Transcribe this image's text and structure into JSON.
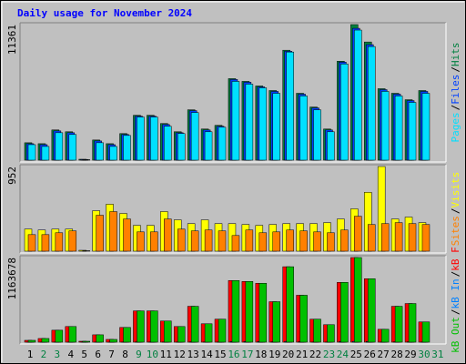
{
  "chart_data": [
    {
      "type": "bar",
      "title": "Daily usage for November 2024",
      "ylim": [
        0,
        11361
      ],
      "yticks": [
        11361
      ],
      "legend_separator": "/",
      "series": [
        {
          "name": "Hits",
          "color": "#008040",
          "values": [
            1458,
            1380,
            2533,
            2380,
            77,
            1689,
            1380,
            2226,
            3761,
            3761,
            3070,
            2380,
            4222,
            2610,
            2917,
            6832,
            6602,
            6218,
            5834,
            9212,
            5604,
            4452,
            2610,
            8290,
            11361,
            9902,
            5988,
            5604,
            5066,
            5834,
            0
          ]
        },
        {
          "name": "Files",
          "color": "#0040ff",
          "values": [
            1380,
            1300,
            2450,
            2300,
            60,
            1610,
            1300,
            2150,
            3690,
            3690,
            2990,
            2300,
            4150,
            2530,
            2840,
            6760,
            6530,
            6140,
            5760,
            9130,
            5530,
            4380,
            2530,
            8210,
            11050,
            9680,
            5910,
            5530,
            4990,
            5760,
            0
          ]
        },
        {
          "name": "Pages",
          "color": "#00e0ff",
          "values": [
            1300,
            1150,
            2300,
            2150,
            40,
            1460,
            1150,
            2070,
            3610,
            3610,
            2840,
            2230,
            3990,
            2380,
            2760,
            6600,
            6370,
            6060,
            5600,
            9060,
            5380,
            4220,
            2380,
            8060,
            10900,
            9520,
            5760,
            5380,
            4840,
            5600,
            0
          ]
        }
      ]
    },
    {
      "type": "bar",
      "ylim": [
        0,
        952
      ],
      "yticks": [
        952
      ],
      "legend_separator": "/",
      "series": [
        {
          "name": "Visits",
          "color": "#ffff00",
          "values": [
            248,
            238,
            248,
            248,
            10,
            455,
            528,
            424,
            290,
            290,
            445,
            352,
            310,
            352,
            310,
            310,
            300,
            290,
            300,
            310,
            310,
            310,
            321,
            362,
            476,
            662,
            952,
            362,
            383,
            321,
            0
          ]
        },
        {
          "name": "Sites",
          "color": "#ff8000",
          "values": [
            186,
            186,
            207,
            228,
            5,
            404,
            445,
            362,
            217,
            217,
            362,
            248,
            228,
            238,
            228,
            176,
            238,
            207,
            217,
            238,
            228,
            217,
            207,
            238,
            393,
            300,
            310,
            321,
            310,
            300,
            0
          ]
        }
      ]
    },
    {
      "type": "bar",
      "ylim": [
        0,
        1163678
      ],
      "yticks": [
        1163678
      ],
      "legend_separator": "/",
      "categories": [
        "1",
        "2",
        "3",
        "4",
        "5",
        "6",
        "7",
        "8",
        "9",
        "10",
        "11",
        "12",
        "13",
        "14",
        "15",
        "16",
        "17",
        "18",
        "19",
        "20",
        "21",
        "22",
        "23",
        "24",
        "25",
        "26",
        "27",
        "28",
        "29",
        "30",
        "31"
      ],
      "category_colors": [
        "#000000",
        "#008040",
        "#008040",
        "#000000",
        "#000000",
        "#000000",
        "#000000",
        "#000000",
        "#008040",
        "#008040",
        "#000000",
        "#000000",
        "#000000",
        "#000000",
        "#000000",
        "#008040",
        "#008040",
        "#000000",
        "#000000",
        "#000000",
        "#000000",
        "#000000",
        "#008040",
        "#008040",
        "#000000",
        "#000000",
        "#000000",
        "#000000",
        "#000000",
        "#008040",
        "#008040"
      ],
      "series": [
        {
          "name": "kB F",
          "color": "#ff0000",
          "values": [
            25297,
            50594,
            164432,
            215027,
            12648,
            101188,
            37946,
            202379,
            430054,
            430054,
            290919,
            215027,
            493297,
            252973,
            316216,
            847460,
            834812,
            809514,
            556540,
            1037188,
            645080,
            316216,
            240324,
            822163,
            1163678,
            872757,
            177081,
            493297,
            531243,
            278271,
            0
          ]
        },
        {
          "name": "kB In",
          "color": "#0080ff",
          "values": [
            300,
            500,
            1600,
            2100,
            100,
            1000,
            400,
            2000,
            4300,
            4300,
            2900,
            2100,
            4900,
            2500,
            3100,
            8400,
            8300,
            8100,
            5500,
            10300,
            6400,
            3100,
            2400,
            8200,
            11600,
            8700,
            1700,
            4900,
            5300,
            2700,
            0
          ]
        },
        {
          "name": "kB Out",
          "color": "#00c000",
          "values": [
            25297,
            50594,
            164432,
            215027,
            12648,
            101188,
            37946,
            202379,
            430054,
            430054,
            290919,
            215027,
            493297,
            252973,
            316216,
            847460,
            834812,
            809514,
            556540,
            1037188,
            645080,
            316216,
            240324,
            822163,
            1163678,
            872757,
            177081,
            493297,
            531243,
            278271,
            0
          ]
        }
      ]
    }
  ]
}
